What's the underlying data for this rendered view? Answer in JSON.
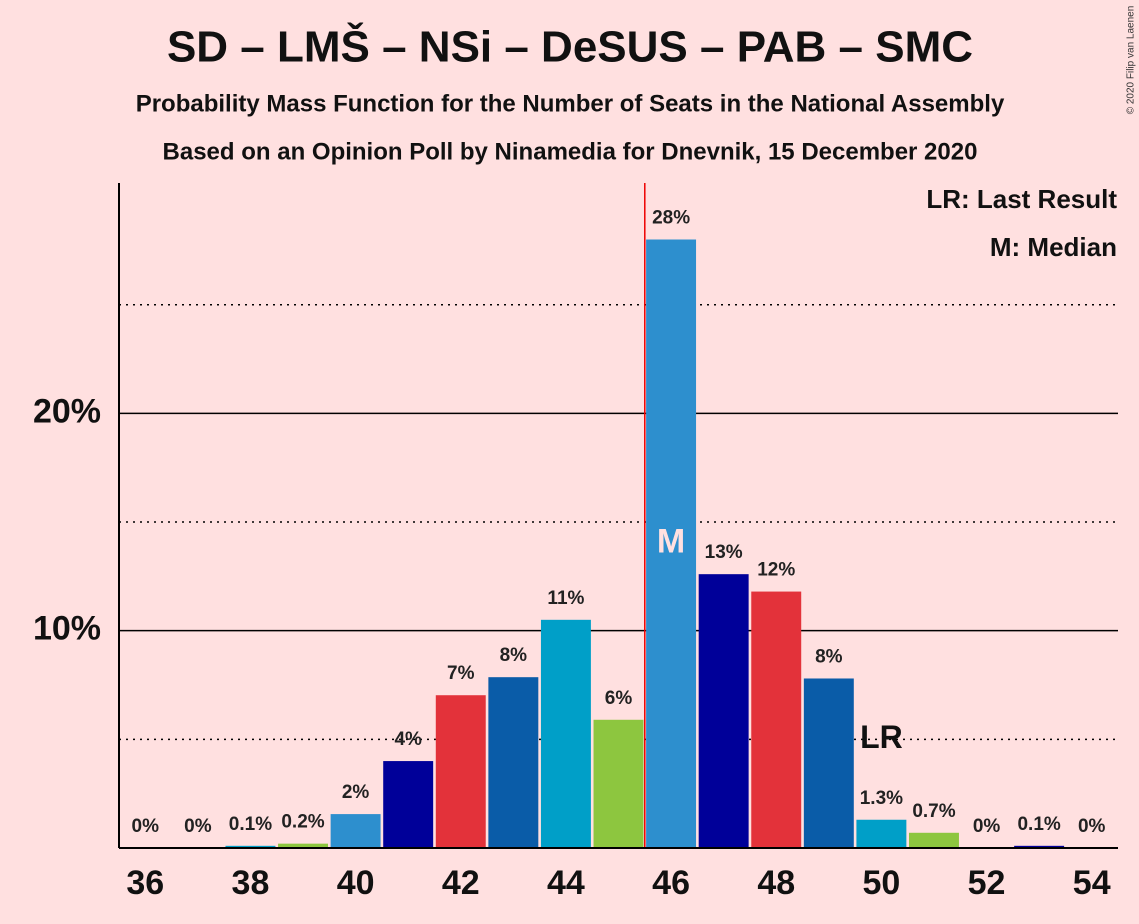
{
  "chart_data": {
    "type": "bar",
    "title": "SD – LMŠ – NSi – DeSUS – PAB – SMC",
    "subtitle": "Probability Mass Function for the Number of Seats in the National Assembly",
    "subtitle2": "Based on an Opinion Poll by Ninamedia for Dnevnik, 15 December 2020",
    "copyright": "© 2020 Filip van Laenen",
    "x": [
      36,
      37,
      38,
      39,
      40,
      41,
      42,
      43,
      44,
      45,
      46,
      47,
      48,
      49,
      50,
      51,
      52,
      53,
      54
    ],
    "values": [
      0,
      0,
      0.1,
      0.2,
      1.56,
      4.0,
      7.03,
      7.86,
      10.5,
      5.9,
      28.0,
      12.6,
      11.8,
      7.8,
      1.3,
      0.7,
      0,
      0.1,
      0
    ],
    "value_labels": [
      "0%",
      "0%",
      "0.1%",
      "0.2%",
      "2%",
      "4%",
      "7%",
      "8%",
      "11%",
      "6%",
      "28%",
      "13%",
      "12%",
      "8%",
      "1.3%",
      "0.7%",
      "0%",
      "0.1%",
      "0%"
    ],
    "colors": [
      "#2d8fce",
      "#000099",
      "#e3323a",
      "#0a5ca8",
      "#009fc8",
      "#8dc63f"
    ],
    "color_start": 40,
    "xlim": [
      35.5,
      54.5
    ],
    "xticks": [
      36,
      38,
      40,
      42,
      44,
      46,
      48,
      50,
      52,
      54
    ],
    "ylim": [
      0,
      30.6
    ],
    "yticks": [
      {
        "value": 10,
        "label": "10%"
      },
      {
        "value": 20,
        "label": "20%"
      }
    ],
    "minor_gridlines": [
      5,
      15,
      25
    ],
    "median": 46,
    "median_label": "M",
    "median_legend": "M: Median",
    "last_result": 50,
    "last_result_label": "LR",
    "last_result_legend": "LR: Last Result"
  }
}
